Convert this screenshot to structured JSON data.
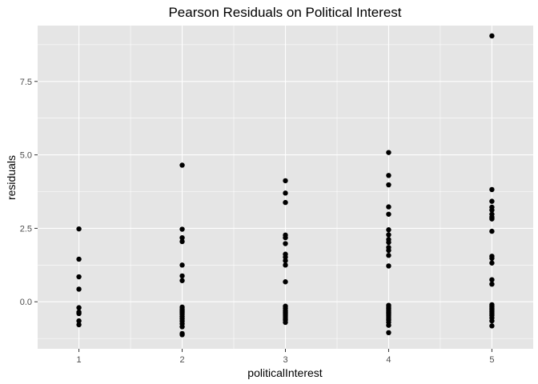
{
  "chart_data": {
    "type": "scatter",
    "title": "Pearson Residuals on Political Interest",
    "xlabel": "politicalInterest",
    "ylabel": "residuals",
    "xlim": [
      0.6,
      5.4
    ],
    "ylim": [
      -1.6,
      9.4
    ],
    "x_ticks": [
      1,
      2,
      3,
      4,
      5
    ],
    "x_tick_labels": [
      "1",
      "2",
      "3",
      "4",
      "5"
    ],
    "y_ticks": [
      0,
      2.5,
      5,
      7.5
    ],
    "y_tick_labels": [
      "0.0",
      "2.5",
      "5.0",
      "7.5"
    ],
    "grid": true,
    "colors": {
      "panel": "#e5e5e5",
      "grid": "#ffffff",
      "point": "#000000"
    },
    "series": [
      {
        "points": [
          [
            1,
            2.48
          ],
          [
            1,
            1.45
          ],
          [
            1,
            0.85
          ],
          [
            1,
            0.43
          ],
          [
            1,
            -0.2
          ],
          [
            1,
            -0.35
          ],
          [
            1,
            -0.4
          ],
          [
            1,
            -0.65
          ],
          [
            1,
            -0.78
          ],
          [
            2,
            4.65
          ],
          [
            2,
            2.47
          ],
          [
            2,
            2.18
          ],
          [
            2,
            2.05
          ],
          [
            2,
            1.25
          ],
          [
            2,
            0.88
          ],
          [
            2,
            0.72
          ],
          [
            2,
            -0.18
          ],
          [
            2,
            -0.25
          ],
          [
            2,
            -0.3
          ],
          [
            2,
            -0.35
          ],
          [
            2,
            -0.42
          ],
          [
            2,
            -0.5
          ],
          [
            2,
            -0.58
          ],
          [
            2,
            -0.66
          ],
          [
            2,
            -0.75
          ],
          [
            2,
            -0.85
          ],
          [
            2,
            -1.08
          ],
          [
            2,
            -1.12
          ],
          [
            3,
            4.12
          ],
          [
            3,
            3.7
          ],
          [
            3,
            3.38
          ],
          [
            3,
            2.27
          ],
          [
            3,
            2.18
          ],
          [
            3,
            1.98
          ],
          [
            3,
            1.62
          ],
          [
            3,
            1.52
          ],
          [
            3,
            1.4
          ],
          [
            3,
            1.25
          ],
          [
            3,
            0.68
          ],
          [
            3,
            -0.15
          ],
          [
            3,
            -0.22
          ],
          [
            3,
            -0.3
          ],
          [
            3,
            -0.36
          ],
          [
            3,
            -0.42
          ],
          [
            3,
            -0.48
          ],
          [
            3,
            -0.55
          ],
          [
            3,
            -0.62
          ],
          [
            3,
            -0.7
          ],
          [
            4,
            5.08
          ],
          [
            4,
            4.3
          ],
          [
            4,
            3.98
          ],
          [
            4,
            3.23
          ],
          [
            4,
            2.98
          ],
          [
            4,
            2.45
          ],
          [
            4,
            2.28
          ],
          [
            4,
            2.12
          ],
          [
            4,
            2.02
          ],
          [
            4,
            1.85
          ],
          [
            4,
            1.75
          ],
          [
            4,
            1.58
          ],
          [
            4,
            1.22
          ],
          [
            4,
            -0.12
          ],
          [
            4,
            -0.18
          ],
          [
            4,
            -0.24
          ],
          [
            4,
            -0.3
          ],
          [
            4,
            -0.36
          ],
          [
            4,
            -0.42
          ],
          [
            4,
            -0.48
          ],
          [
            4,
            -0.55
          ],
          [
            4,
            -0.62
          ],
          [
            4,
            -0.7
          ],
          [
            4,
            -0.8
          ],
          [
            4,
            -1.05
          ],
          [
            5,
            9.05
          ],
          [
            5,
            3.82
          ],
          [
            5,
            3.42
          ],
          [
            5,
            3.22
          ],
          [
            5,
            3.12
          ],
          [
            5,
            2.98
          ],
          [
            5,
            2.88
          ],
          [
            5,
            2.82
          ],
          [
            5,
            2.4
          ],
          [
            5,
            1.55
          ],
          [
            5,
            1.48
          ],
          [
            5,
            1.32
          ],
          [
            5,
            0.75
          ],
          [
            5,
            0.6
          ],
          [
            5,
            -0.1
          ],
          [
            5,
            -0.16
          ],
          [
            5,
            -0.22
          ],
          [
            5,
            -0.28
          ],
          [
            5,
            -0.34
          ],
          [
            5,
            -0.4
          ],
          [
            5,
            -0.46
          ],
          [
            5,
            -0.55
          ],
          [
            5,
            -0.65
          ],
          [
            5,
            -0.82
          ]
        ]
      }
    ]
  }
}
